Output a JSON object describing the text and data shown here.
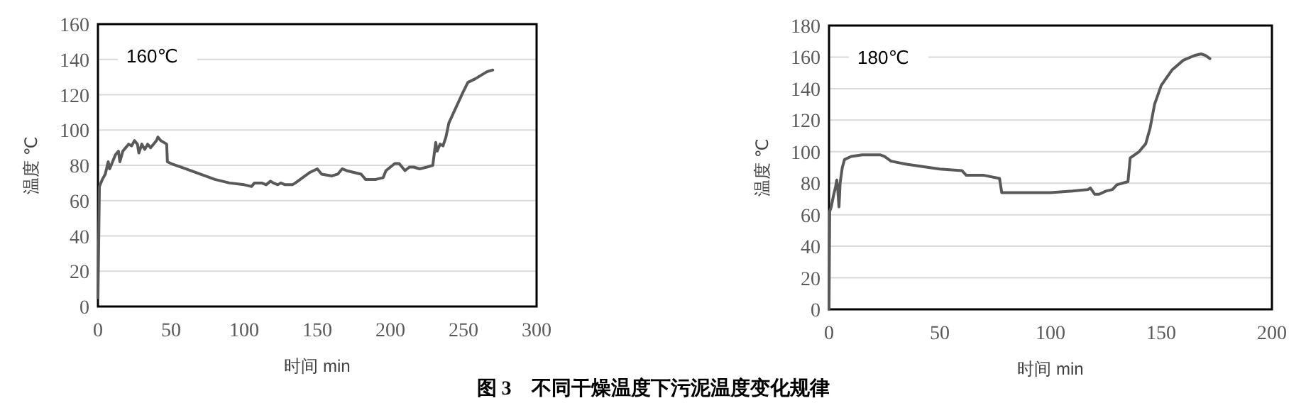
{
  "chart_data": [
    {
      "type": "line",
      "xlabel": "时间 min",
      "ylabel": "温度 ℃",
      "xlim": [
        0,
        300
      ],
      "xticks": [
        0,
        50,
        100,
        150,
        200,
        250,
        300
      ],
      "ylim": [
        0,
        160
      ],
      "yticks": [
        0,
        20,
        40,
        60,
        80,
        100,
        120,
        140,
        160
      ],
      "grid": "y",
      "legend": "top left",
      "annotations": [
        "图 3　不同干燥温度下污泥温度变化规律"
      ],
      "series": [
        {
          "name": "160℃",
          "color": "#595959",
          "x": [
            0,
            1,
            3,
            5,
            7,
            8,
            10,
            12,
            14,
            15,
            17,
            19,
            21,
            23,
            25,
            27,
            28,
            30,
            32,
            34,
            36,
            38,
            40,
            41,
            43,
            45,
            47,
            47.5,
            50,
            60,
            70,
            80,
            90,
            100,
            105,
            107,
            112,
            115,
            118,
            120,
            123,
            125,
            128,
            130,
            133,
            135,
            140,
            145,
            150,
            153,
            160,
            164,
            167,
            170,
            175,
            180,
            183,
            190,
            195,
            197,
            200,
            203,
            206,
            208,
            210,
            213,
            216,
            220,
            225,
            229,
            231,
            232,
            234,
            236,
            238,
            240,
            245,
            250,
            253,
            258,
            262,
            266,
            270
          ],
          "values": [
            5,
            68,
            72,
            75,
            82,
            78,
            82,
            86,
            88,
            82,
            88,
            90,
            92,
            91,
            94,
            92,
            87,
            92,
            89,
            92,
            90,
            92,
            94,
            96,
            94,
            93,
            92,
            82,
            81,
            78,
            75,
            72,
            70,
            69,
            68,
            70,
            70,
            69,
            71,
            70,
            69,
            70,
            69,
            69,
            69,
            70,
            73,
            76,
            78,
            75,
            74,
            75,
            78,
            77,
            76,
            75,
            72,
            72,
            73,
            77,
            79,
            81,
            81,
            79,
            77,
            79,
            79,
            78,
            79,
            80,
            93,
            88,
            92,
            91,
            96,
            104,
            113,
            122,
            127,
            129,
            131,
            133,
            134
          ]
        }
      ]
    },
    {
      "type": "line",
      "xlabel": "时间 min",
      "ylabel": "温度 ℃",
      "xlim": [
        0,
        200
      ],
      "xticks": [
        0,
        50,
        100,
        150,
        200
      ],
      "ylim": [
        0,
        180
      ],
      "yticks": [
        0,
        20,
        40,
        60,
        80,
        100,
        120,
        140,
        160,
        180
      ],
      "grid": "y",
      "legend": "top left",
      "series": [
        {
          "name": "180℃",
          "color": "#595959",
          "x": [
            0,
            0.3,
            1,
            2,
            3,
            3.5,
            4,
            4.5,
            5,
            6,
            7,
            10,
            15,
            23,
            25,
            28,
            35,
            45,
            50,
            60,
            62,
            70,
            77,
            78,
            80,
            90,
            100,
            110,
            117,
            118,
            120,
            122,
            125,
            128,
            130,
            135,
            136,
            140,
            143,
            145,
            147,
            150,
            155,
            160,
            165,
            168,
            170,
            172
          ],
          "values": [
            0,
            62,
            65,
            72,
            78,
            82,
            75,
            65,
            80,
            90,
            95,
            97,
            98,
            98,
            97,
            94,
            92,
            90,
            89,
            88,
            85,
            85,
            83,
            74,
            74,
            74,
            74,
            75,
            76,
            77,
            73,
            73,
            75,
            76,
            79,
            81,
            96,
            100,
            105,
            115,
            130,
            142,
            152,
            158,
            161,
            162,
            161,
            159
          ]
        }
      ]
    }
  ]
}
